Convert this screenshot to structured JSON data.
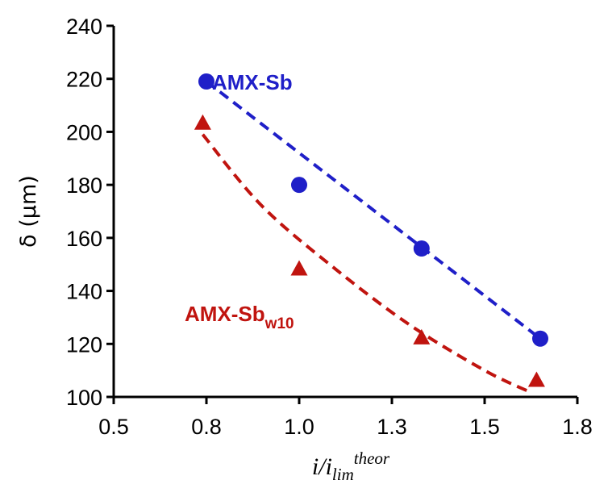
{
  "chart_data": {
    "type": "scatter",
    "title": "",
    "xlabel_main": "i/i",
    "xlabel_sub": "lim",
    "xlabel_sup": "theor",
    "ylabel": "δ (μm)",
    "xlim": [
      0.5,
      1.75
    ],
    "ylim": [
      100,
      240
    ],
    "xticks": [
      0.5,
      0.75,
      1.0,
      1.25,
      1.5,
      1.75
    ],
    "xtick_labels": [
      "0.5",
      "0.8",
      "1.0",
      "1.3",
      "1.5",
      "1.8"
    ],
    "yticks": [
      100,
      120,
      140,
      160,
      180,
      200,
      220,
      240
    ],
    "ytick_labels": [
      "100",
      "120",
      "140",
      "160",
      "180",
      "200",
      "220",
      "240"
    ],
    "grid": false,
    "series": [
      {
        "name": "AMX-Sb",
        "label_main": "AMX-Sb",
        "label_sub": "",
        "color": "#1f1fc8",
        "marker": "circle",
        "x": [
          0.75,
          1.0,
          1.33,
          1.65
        ],
        "y": [
          219,
          180,
          156,
          122
        ],
        "trend": {
          "x": [
            0.75,
            1.65
          ],
          "y": [
            219,
            122
          ],
          "style": "dashed"
        }
      },
      {
        "name": "AMX-Sbw10",
        "label_main": "AMX-Sb",
        "label_sub": "w10",
        "color": "#c0140f",
        "marker": "triangle",
        "x": [
          0.74,
          1.0,
          1.33,
          1.64
        ],
        "y": [
          203,
          148,
          122,
          106
        ],
        "trend": {
          "x": [
            0.74,
            0.9,
            1.1,
            1.3,
            1.5,
            1.62
          ],
          "y": [
            199,
            172,
            148,
            127,
            110,
            102
          ],
          "style": "dashed"
        }
      }
    ]
  }
}
